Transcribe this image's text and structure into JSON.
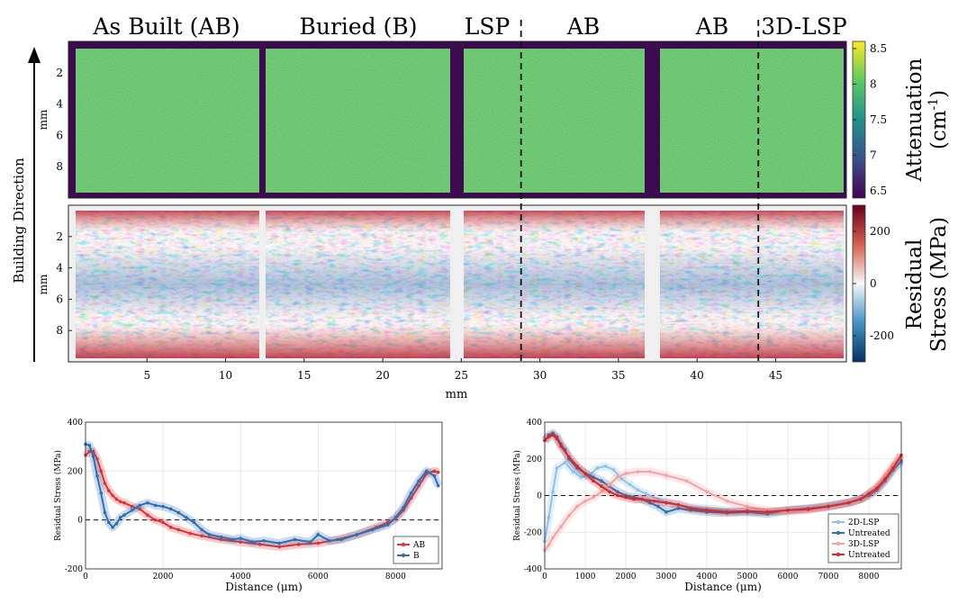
{
  "chart_data": [
    {
      "type": "heatmap",
      "panel": "attenuation",
      "section_labels": [
        "As Built (AB)",
        "Buried (B)",
        "LSP",
        "AB",
        "AB",
        "3D-LSP"
      ],
      "ylabel": "mm",
      "yticks": [
        2,
        4,
        6,
        8
      ],
      "ylim": [
        0,
        10
      ],
      "colorbar": {
        "label": "Attenuation",
        "unit_base": "(cm",
        "unit_sup": "-1",
        "unit_end": ")",
        "ticks": [
          6.5,
          7,
          7.5,
          8,
          8.5
        ],
        "range": [
          6.4,
          8.6
        ],
        "colormap": "viridis"
      }
    },
    {
      "type": "heatmap",
      "panel": "residual-stress-map",
      "xlabel": "mm",
      "ylabel": "mm",
      "xticks": [
        5,
        10,
        15,
        20,
        25,
        30,
        35,
        40,
        45
      ],
      "xlim": [
        0,
        49.5
      ],
      "yticks": [
        2,
        4,
        6,
        8
      ],
      "ylim": [
        0,
        10
      ],
      "dashed_lines_x": [
        28.8,
        43.9
      ],
      "colorbar": {
        "label_line1": "Residual",
        "label_line2": "Stress (MPa)",
        "ticks": [
          200,
          0,
          -200
        ],
        "range": [
          -300,
          300
        ],
        "colormap": "RdBu_r"
      }
    },
    {
      "type": "line",
      "panel": "left-profile",
      "xlabel": "Distance (μm)",
      "ylabel": "Residual Stress (MPa)",
      "xlim": [
        0,
        9200
      ],
      "ylim": [
        -200,
        400
      ],
      "xticks": [
        0,
        2000,
        4000,
        6000,
        8000
      ],
      "yticks": [
        -200,
        0,
        200,
        400
      ],
      "grid": true,
      "zero_line": true,
      "legend": "bottom-right",
      "series": [
        {
          "name": "AB",
          "color": "#e03131",
          "x": [
            0,
            100,
            200,
            300,
            400,
            500,
            600,
            700,
            800,
            900,
            1000,
            1200,
            1400,
            1600,
            1800,
            2000,
            2200,
            2400,
            2700,
            3000,
            3500,
            4000,
            4500,
            5000,
            5500,
            6000,
            6500,
            7000,
            7500,
            7800,
            8000,
            8200,
            8400,
            8600,
            8800,
            9000,
            9100
          ],
          "y": [
            265,
            280,
            280,
            250,
            200,
            150,
            120,
            100,
            85,
            75,
            70,
            55,
            45,
            20,
            0,
            -10,
            -30,
            -40,
            -55,
            -65,
            -80,
            -90,
            -100,
            -110,
            -100,
            -95,
            -80,
            -60,
            -30,
            -10,
            5,
            40,
            90,
            140,
            190,
            200,
            195
          ]
        },
        {
          "name": "B",
          "color": "#2f6fb5",
          "x": [
            0,
            100,
            200,
            300,
            400,
            500,
            600,
            700,
            800,
            900,
            1000,
            1200,
            1400,
            1600,
            1800,
            2000,
            2200,
            2400,
            2600,
            2800,
            3000,
            3200,
            3500,
            3800,
            4000,
            4300,
            4600,
            5000,
            5400,
            5800,
            6000,
            6300,
            6600,
            7000,
            7400,
            7800,
            8000,
            8200,
            8400,
            8600,
            8800,
            9000,
            9100
          ],
          "y": [
            310,
            305,
            260,
            180,
            110,
            30,
            -10,
            -30,
            -15,
            10,
            20,
            40,
            60,
            70,
            60,
            55,
            45,
            30,
            10,
            -10,
            -40,
            -60,
            -70,
            -80,
            -75,
            -90,
            -85,
            -95,
            -80,
            -90,
            -60,
            -85,
            -80,
            -60,
            -40,
            -20,
            10,
            50,
            110,
            160,
            200,
            180,
            140
          ]
        }
      ]
    },
    {
      "type": "line",
      "panel": "right-profile",
      "xlabel": "Distance (μm)",
      "ylabel": "Residual Stress (MPa)",
      "xlim": [
        0,
        8800
      ],
      "ylim": [
        -400,
        400
      ],
      "xticks": [
        0,
        1000,
        2000,
        3000,
        4000,
        5000,
        6000,
        7000,
        8000
      ],
      "yticks": [
        -400,
        -200,
        0,
        200,
        400
      ],
      "grid": true,
      "zero_line": true,
      "legend": "bottom-right",
      "series": [
        {
          "name": "2D-LSP",
          "color": "#8fc1e6",
          "x": [
            0,
            100,
            200,
            300,
            500,
            700,
            900,
            1100,
            1300,
            1500,
            1700,
            1900,
            2100,
            2300,
            2500,
            2800,
            3100,
            3500,
            4000,
            4500,
            5000,
            5500,
            6000,
            6500,
            7000,
            7500,
            7800,
            8000,
            8200,
            8400,
            8600,
            8800
          ],
          "y": [
            -250,
            -120,
            20,
            150,
            180,
            130,
            100,
            110,
            150,
            160,
            140,
            90,
            60,
            30,
            10,
            -20,
            -40,
            -60,
            -70,
            -80,
            -90,
            -90,
            -85,
            -70,
            -55,
            -35,
            -15,
            10,
            40,
            90,
            150,
            180
          ]
        },
        {
          "name": "Untreated",
          "color": "#2f6fb5",
          "x": [
            0,
            100,
            200,
            300,
            400,
            500,
            600,
            800,
            1000,
            1200,
            1400,
            1600,
            1800,
            2000,
            2200,
            2400,
            2600,
            2800,
            3000,
            3300,
            3600,
            4000,
            4500,
            5000,
            5500,
            6000,
            6500,
            7000,
            7500,
            7800,
            8000,
            8200,
            8400,
            8600,
            8800
          ],
          "y": [
            300,
            330,
            340,
            320,
            280,
            250,
            200,
            150,
            120,
            100,
            80,
            50,
            20,
            0,
            -10,
            -20,
            -40,
            -60,
            -90,
            -70,
            -80,
            -90,
            -95,
            -90,
            -100,
            -80,
            -70,
            -60,
            -40,
            -20,
            0,
            30,
            80,
            140,
            190
          ]
        },
        {
          "name": "3D-LSP",
          "color": "#f2a3a3",
          "x": [
            0,
            100,
            200,
            400,
            600,
            800,
            1000,
            1200,
            1400,
            1600,
            1800,
            2000,
            2300,
            2600,
            3000,
            3500,
            4000,
            4500,
            5000,
            5500,
            6000,
            6500,
            7000,
            7500,
            7800,
            8000,
            8200,
            8400,
            8600,
            8800
          ],
          "y": [
            -300,
            -270,
            -230,
            -170,
            -110,
            -60,
            -30,
            -10,
            20,
            60,
            100,
            120,
            130,
            130,
            110,
            80,
            20,
            -30,
            -60,
            -80,
            -90,
            -80,
            -60,
            -40,
            -20,
            10,
            50,
            110,
            170,
            220
          ]
        },
        {
          "name": "Untreated",
          "color": "#d62828",
          "x": [
            0,
            100,
            200,
            300,
            400,
            600,
            800,
            1000,
            1200,
            1400,
            1600,
            1800,
            2000,
            2200,
            2400,
            2700,
            3000,
            3300,
            3600,
            4000,
            4500,
            5000,
            5500,
            6000,
            6500,
            7000,
            7500,
            7800,
            8000,
            8200,
            8400,
            8600,
            8800
          ],
          "y": [
            300,
            320,
            330,
            310,
            270,
            210,
            160,
            120,
            80,
            50,
            20,
            0,
            -10,
            -20,
            -20,
            -30,
            -40,
            -50,
            -70,
            -80,
            -90,
            -85,
            -90,
            -80,
            -75,
            -60,
            -40,
            -20,
            10,
            40,
            90,
            150,
            220
          ]
        }
      ]
    }
  ],
  "building_direction_label": "Building Direction"
}
